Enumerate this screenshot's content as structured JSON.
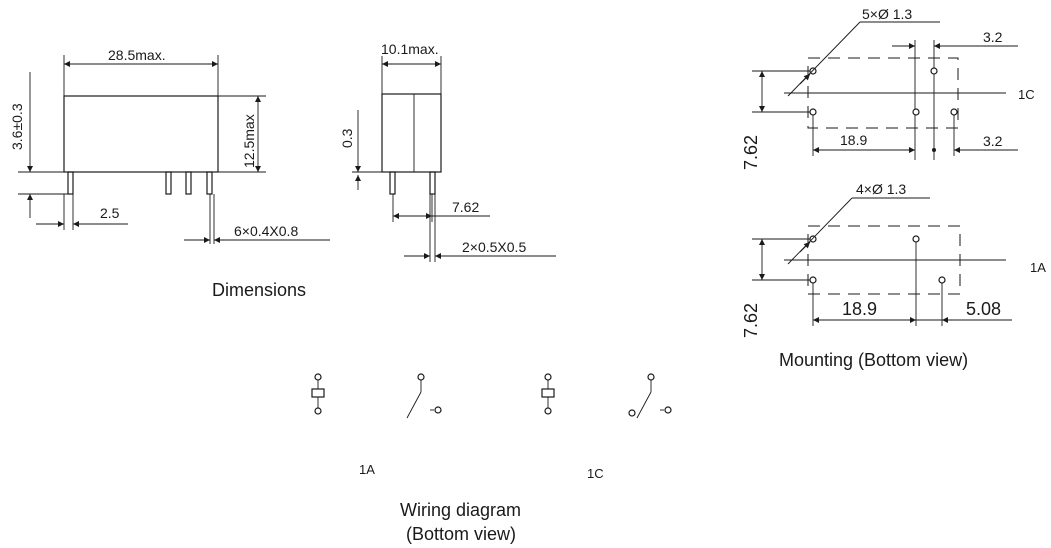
{
  "dimensions": {
    "caption": "Dimensions",
    "width_label": "28.5max.",
    "height_label": "12.5max",
    "standoff_label": "3.6±0.3",
    "pitch_label": "2.5",
    "pin_size_label": "6×0.4X0.8",
    "depth_label": "10.1max.",
    "side_standoff_label": "0.3",
    "side_pitch_label": "7.62",
    "side_pin_size_label": "2×0.5X0.5"
  },
  "mounting": {
    "caption": "Mounting (Bottom view)",
    "top": {
      "variant": "1C",
      "holes_label": "5×Ø 1.3",
      "row_pitch_label": "7.62",
      "span_label": "18.9",
      "top_offset_label": "3.2",
      "bottom_offset_label": "3.2"
    },
    "bottom": {
      "variant": "1A",
      "holes_label": "4×Ø 1.3",
      "row_pitch_label": "7.62",
      "span_label": "18.9",
      "offset_label": "5.08"
    }
  },
  "wiring": {
    "caption_line1": "Wiring diagram",
    "caption_line2": "(Bottom view)",
    "label_1a": "1A",
    "label_1c": "1C"
  }
}
